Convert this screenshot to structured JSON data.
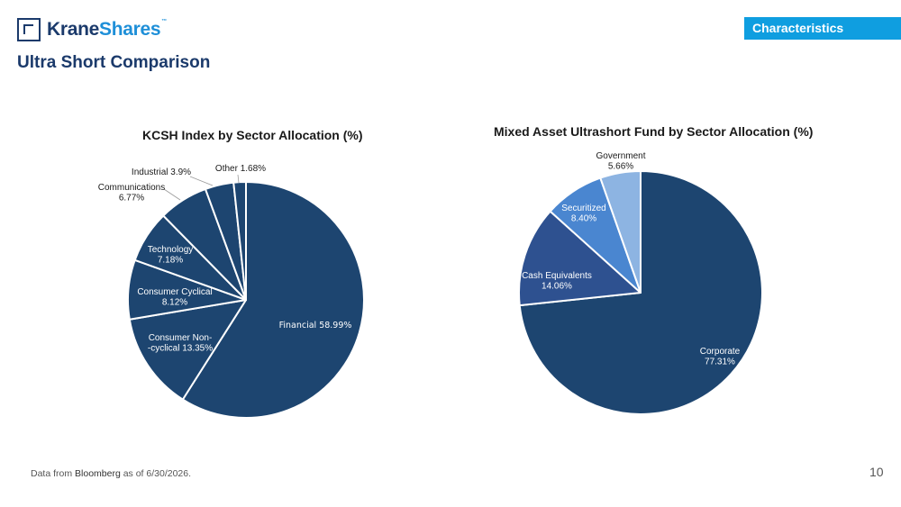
{
  "header": {
    "logo_brand_a": "Krane",
    "logo_brand_b": "Shares",
    "logo_tm": "™",
    "page_title": "Ultra Short Comparison",
    "section_badge": "Characteristics"
  },
  "footer": {
    "source_prefix": "Data from ",
    "source_name": "Bloomberg",
    "source_suffix": " as of 6/30/2026.",
    "page_number": "10"
  },
  "colors": {
    "brand_navy": "#1b3a6b",
    "brand_blue": "#1e8fd8",
    "badge_blue": "#0f9ee0"
  },
  "chart_data": [
    {
      "type": "pie",
      "title": "KCSH Index by Sector Allocation (%)",
      "start": "12 o'clock",
      "direction": "clockwise",
      "slices": [
        {
          "label": "Financial 58.99%",
          "value": 58.99,
          "color": "#1d4570"
        },
        {
          "label": "Consumer Non-cyclical 13.35%",
          "value": 13.35,
          "color": "#1d4570"
        },
        {
          "label": "Consumer Cyclical 8.12%",
          "value": 8.12,
          "color": "#1d4570"
        },
        {
          "label": "Technology 7.18%",
          "value": 7.18,
          "color": "#1d4570"
        },
        {
          "label": "Communications 6.77%",
          "value": 6.77,
          "color": "#1d4570"
        },
        {
          "label": "Industrial 3.9%",
          "value": 3.9,
          "color": "#1d4570"
        },
        {
          "label": "Other 1.68%",
          "value": 1.68,
          "color": "#1d4570"
        }
      ]
    },
    {
      "type": "pie",
      "title": "Mixed Asset Ultrashort Fund by Sector Allocation (%)",
      "start": "12 o'clock",
      "direction": "clockwise",
      "slices": [
        {
          "label": "Corporate 77.31%",
          "value": 77.31,
          "color": "#1d4570"
        },
        {
          "label": "Cash Equivalents 14.06%",
          "value": 14.06,
          "color": "#2e5190"
        },
        {
          "label": "Securitized 8.40%",
          "value": 8.4,
          "color": "#4a86d0"
        },
        {
          "label": "Government 5.66%",
          "value": 5.66,
          "color": "#8db4e2"
        }
      ]
    }
  ]
}
